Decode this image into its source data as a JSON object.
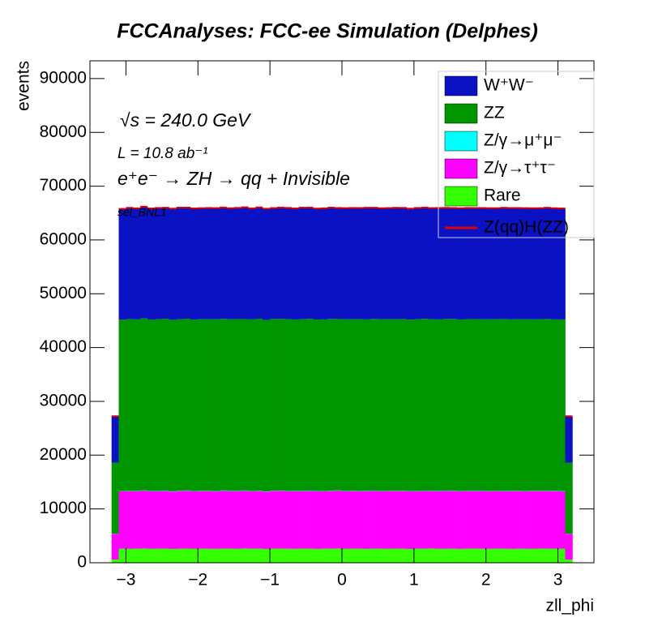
{
  "chart_data": {
    "type": "stacked_histogram",
    "title": "FCCAnalyses: FCC-ee Simulation (Delphes)",
    "xlabel": "zll_phi",
    "ylabel": "events",
    "annotations": [
      "√s = 240.0 GeV",
      "L = 10.8 ab⁻¹",
      "e⁺e⁻ → ZH → qq + Invisible",
      "sel_BNL1"
    ],
    "xlim": [
      -3.5,
      3.5
    ],
    "ylim": [
      0,
      93300
    ],
    "xticks": [
      {
        "value": -3,
        "label": "−3"
      },
      {
        "value": -2,
        "label": "−2"
      },
      {
        "value": -1,
        "label": "−1"
      },
      0,
      1,
      2,
      3
    ],
    "yticks": [
      0,
      10000,
      20000,
      30000,
      40000,
      50000,
      60000,
      70000,
      80000,
      90000
    ],
    "legend": "upper right",
    "bins": [
      -3.2,
      -3.1,
      -3.0,
      -2.9,
      -2.8,
      -2.7,
      -2.6,
      -2.5,
      -2.4,
      -2.3,
      -2.2,
      -2.1,
      -2.0,
      -1.9,
      -1.8,
      -1.7,
      -1.6,
      -1.5,
      -1.4,
      -1.3,
      -1.2,
      -1.1,
      -1.0,
      -0.9,
      -0.8,
      -0.7,
      -0.6,
      -0.5,
      -0.4,
      -0.3,
      -0.2,
      -0.1,
      0.0,
      0.1,
      0.2,
      0.3,
      0.4,
      0.5,
      0.6,
      0.7,
      0.8,
      0.9,
      1.0,
      1.1,
      1.2,
      1.3,
      1.4,
      1.5,
      1.6,
      1.7,
      1.8,
      1.9,
      2.0,
      2.1,
      2.2,
      2.3,
      2.4,
      2.5,
      2.6,
      2.7,
      2.8,
      2.9,
      3.0,
      3.1,
      3.2
    ],
    "series": [
      {
        "name": "W⁺W⁻",
        "color": "#0a12c4",
        "style": "fill",
        "values": [
          8600,
          20550,
          20620,
          20580,
          20700,
          20600,
          20640,
          20570,
          20610,
          20680,
          20590,
          20630,
          20560,
          20620,
          20600,
          20650,
          20580,
          20610,
          20720,
          20590,
          20630,
          20600,
          20570,
          20640,
          20610,
          20590,
          20680,
          20620,
          20560,
          20600,
          20640,
          20580,
          20610,
          20630,
          20590,
          20700,
          20620,
          20570,
          20610,
          20650,
          20600,
          20580,
          20640,
          20620,
          20590,
          20660,
          20600,
          20570,
          20630,
          20610,
          20590,
          20640,
          20600,
          20580,
          20620,
          20650,
          20590,
          20610,
          20600,
          20570,
          20630,
          20610,
          20580,
          8600
        ]
      },
      {
        "name": "ZZ",
        "color": "#009600",
        "style": "fill",
        "values": [
          13200,
          31850,
          31950,
          31900,
          31980,
          31870,
          31920,
          31960,
          31880,
          31910,
          31940,
          31860,
          31930,
          31900,
          31970,
          31890,
          31920,
          31950,
          31870,
          31910,
          32000,
          31880,
          31930,
          31900,
          31960,
          31870,
          31920,
          31940,
          31890,
          31910,
          31950,
          31860,
          31930,
          31900,
          31970,
          31880,
          31920,
          31950,
          31890,
          31910,
          31940,
          31870,
          31930,
          31960,
          31900,
          31880,
          31920,
          31950,
          31890,
          31910,
          31940,
          31860,
          31930,
          31900,
          31970,
          31880,
          31920,
          31950,
          31890,
          31910,
          31940,
          31870,
          31900,
          13200
        ]
      },
      {
        "name": "Z/γ→μ⁺μ⁻",
        "color": "#00ffff",
        "style": "fill",
        "values": [
          20,
          50,
          50,
          50,
          50,
          50,
          50,
          50,
          50,
          50,
          50,
          50,
          50,
          50,
          50,
          50,
          50,
          50,
          50,
          50,
          50,
          50,
          50,
          50,
          50,
          50,
          50,
          50,
          50,
          50,
          50,
          50,
          50,
          50,
          50,
          50,
          50,
          50,
          50,
          50,
          50,
          50,
          50,
          50,
          50,
          50,
          50,
          50,
          50,
          50,
          50,
          50,
          50,
          50,
          50,
          50,
          50,
          50,
          50,
          50,
          50,
          50,
          50,
          20
        ]
      },
      {
        "name": "Z/γ→τ⁺τ⁻",
        "color": "#ff00ff",
        "style": "fill",
        "values": [
          4800,
          10650,
          10720,
          10680,
          10750,
          10700,
          10690,
          10730,
          10660,
          10710,
          10740,
          10680,
          10700,
          10720,
          10670,
          10760,
          10690,
          10710,
          10730,
          10680,
          10700,
          10650,
          10720,
          10740,
          10690,
          10710,
          10680,
          10730,
          10700,
          10660,
          10720,
          10750,
          10690,
          10700,
          10680,
          10730,
          10710,
          10670,
          10740,
          10690,
          10720,
          10700,
          10660,
          10730,
          10680,
          10710,
          10750,
          10690,
          10700,
          10720,
          10670,
          10740,
          10690,
          10710,
          10680,
          10730,
          10700,
          10660,
          10720,
          10690,
          10710,
          10700,
          10680,
          4800
        ]
      },
      {
        "name": "Rare",
        "color": "#33ff00",
        "style": "fill",
        "values": [
          600,
          2620,
          2580,
          2610,
          2650,
          2590,
          2600,
          2630,
          2570,
          2610,
          2640,
          2590,
          2620,
          2600,
          2580,
          2630,
          2610,
          2590,
          2650,
          2600,
          2620,
          2570,
          2610,
          2640,
          2600,
          2590,
          2620,
          2630,
          2580,
          2610,
          2600,
          2650,
          2590,
          2620,
          2600,
          2580,
          2640,
          2610,
          2590,
          2630,
          2600,
          2570,
          2620,
          2610,
          2650,
          2590,
          2600,
          2630,
          2580,
          2610,
          2640,
          2600,
          2590,
          2620,
          2610,
          2580,
          2630,
          2600,
          2590,
          2640,
          2610,
          2620,
          2600,
          600
        ]
      },
      {
        "name": "Z(qq)H(ZZ)",
        "color": "#e00000",
        "style": "line",
        "values": [
          20,
          60,
          60,
          60,
          60,
          60,
          60,
          60,
          60,
          60,
          60,
          60,
          60,
          60,
          60,
          60,
          60,
          60,
          60,
          60,
          60,
          60,
          60,
          60,
          60,
          60,
          60,
          60,
          60,
          60,
          60,
          60,
          60,
          60,
          60,
          60,
          60,
          60,
          60,
          60,
          60,
          60,
          60,
          60,
          60,
          60,
          60,
          60,
          60,
          60,
          60,
          60,
          60,
          60,
          60,
          60,
          60,
          60,
          60,
          60,
          60,
          60,
          60,
          20
        ]
      }
    ]
  }
}
